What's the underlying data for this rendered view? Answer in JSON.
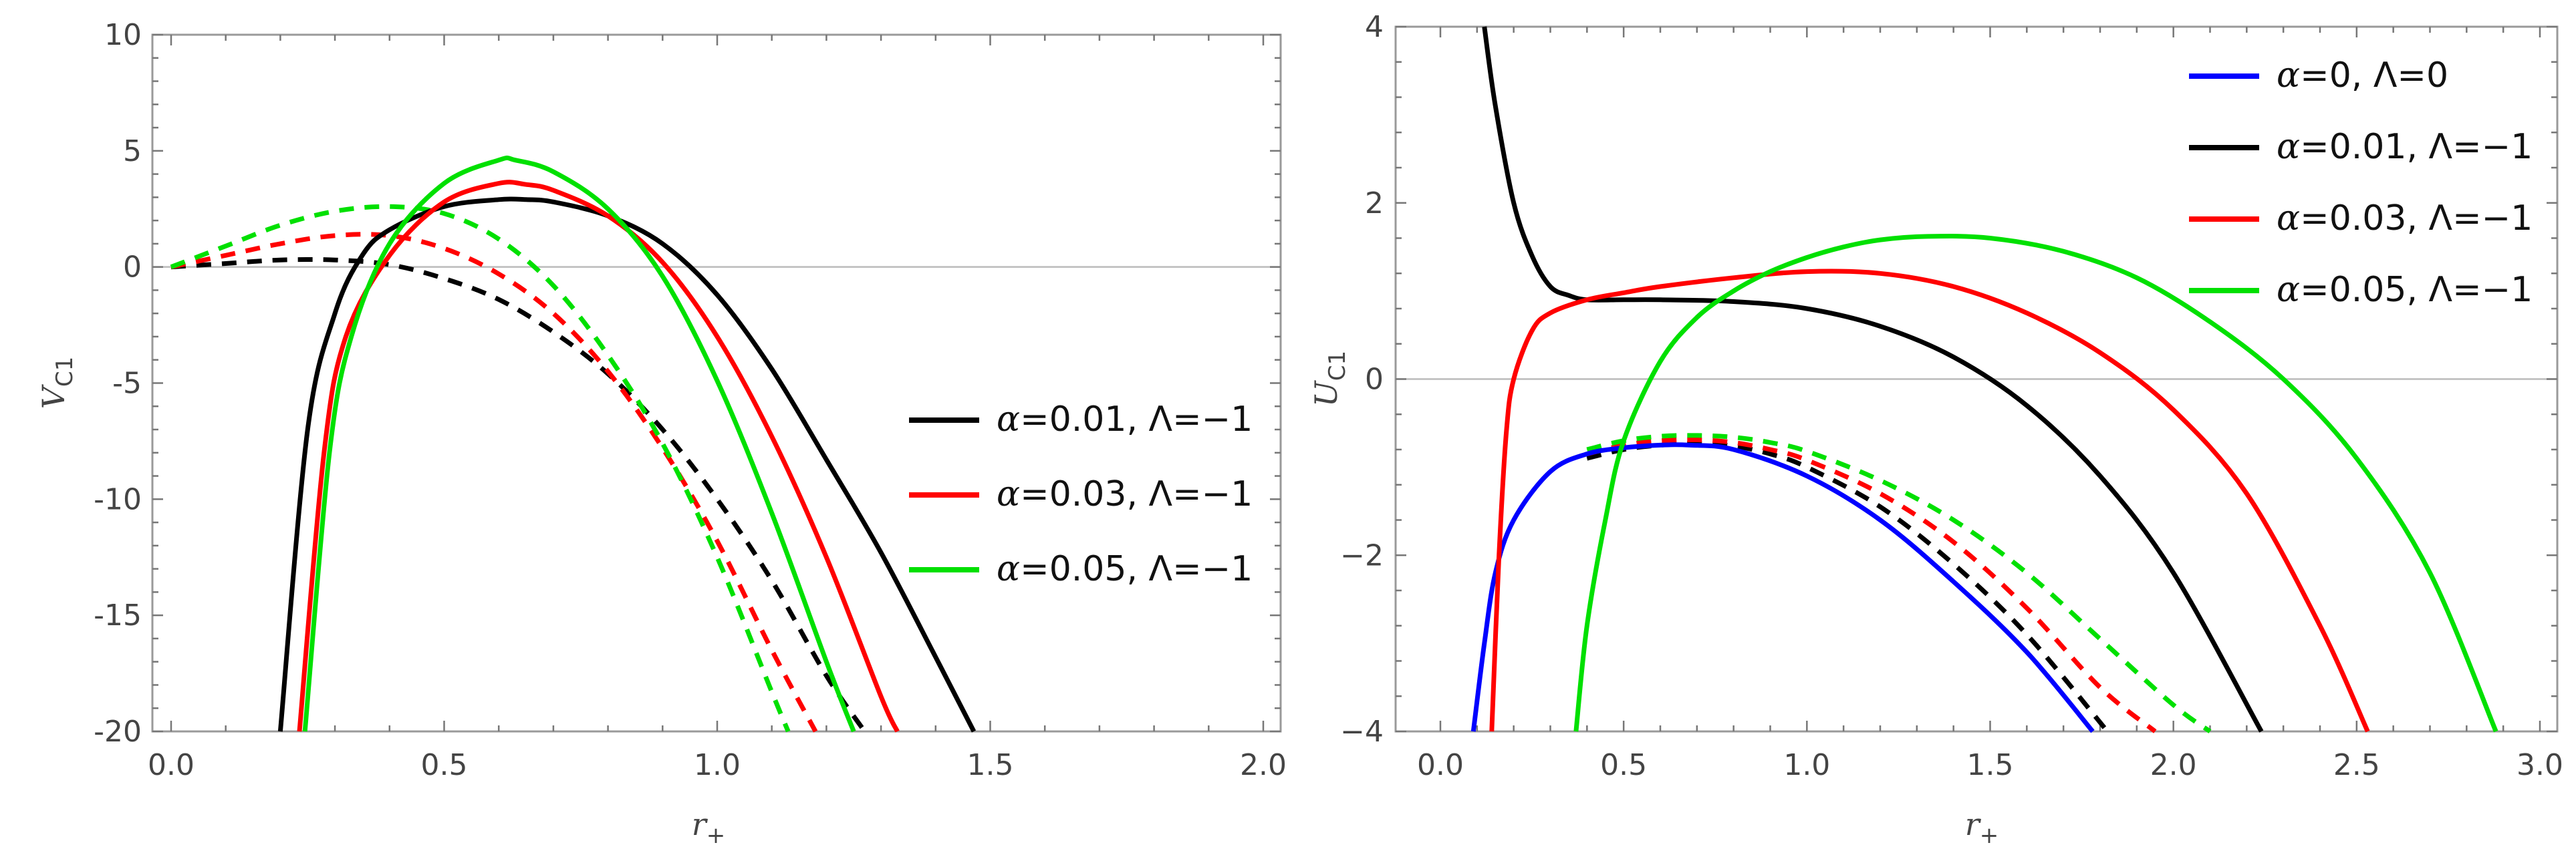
{
  "chart_data": [
    {
      "type": "line",
      "panel": "left",
      "xlabel": "r",
      "xlabel_sub": "+",
      "ylabel": "V",
      "ylabel_sub": "C1",
      "xlim": [
        0,
        2.0
      ],
      "ylim": [
        -20,
        10
      ],
      "xticks": [
        0.0,
        0.5,
        1.0,
        1.5,
        2.0
      ],
      "xtick_labels": [
        "0.0",
        "0.5",
        "1.0",
        "1.5",
        "2.0"
      ],
      "yticks": [
        10,
        5,
        0,
        -5,
        -10,
        -15,
        -20
      ],
      "ytick_labels": [
        "10",
        "5",
        "0",
        "-5",
        "-10",
        "-15",
        "-20"
      ],
      "legend_position": "right-middle",
      "series": [
        {
          "name": "α=0.01, Λ=−1",
          "label_parts": [
            "α",
            "=0.01, Λ=−1"
          ],
          "color": "#000000",
          "style": "solid",
          "x": [
            0.2,
            0.25,
            0.3,
            0.35,
            0.4,
            0.5,
            0.6,
            0.65,
            0.7,
            0.8,
            0.9,
            1.0,
            1.1,
            1.2,
            1.3,
            1.4,
            1.47
          ],
          "y": [
            -20,
            -7,
            -2,
            0.5,
            1.6,
            2.6,
            2.9,
            2.9,
            2.8,
            2.2,
            1.0,
            -1.2,
            -4.4,
            -8.3,
            -12.3,
            -16.8,
            -20
          ]
        },
        {
          "name": "α=0.03, Λ=−1",
          "label_parts": [
            "α",
            "=0.03, Λ=−1"
          ],
          "color": "#ff0000",
          "style": "solid",
          "x": [
            0.235,
            0.28,
            0.32,
            0.4,
            0.5,
            0.6,
            0.65,
            0.7,
            0.8,
            0.9,
            1.0,
            1.1,
            1.2,
            1.3,
            1.33
          ],
          "y": [
            -20,
            -8,
            -3,
            0.5,
            2.8,
            3.6,
            3.55,
            3.3,
            2.2,
            0.2,
            -3.0,
            -7.3,
            -12.5,
            -18.5,
            -20
          ]
        },
        {
          "name": "α=0.05, Λ=−1",
          "label_parts": [
            "α",
            "=0.05, Λ=−1"
          ],
          "color": "#00e000",
          "style": "solid",
          "x": [
            0.245,
            0.29,
            0.33,
            0.4,
            0.5,
            0.6,
            0.63,
            0.7,
            0.8,
            0.9,
            1.0,
            1.1,
            1.2,
            1.25
          ],
          "y": [
            -20,
            -8,
            -3,
            1.0,
            3.6,
            4.6,
            4.6,
            4.1,
            2.5,
            -0.4,
            -4.9,
            -10.6,
            -17.0,
            -20
          ]
        },
        {
          "name": "α=0.01 dashed",
          "color": "#000000",
          "style": "dashed",
          "in_legend": false,
          "x": [
            0.0,
            0.1,
            0.2,
            0.3,
            0.4,
            0.5,
            0.6,
            0.7,
            0.8,
            0.9,
            1.0,
            1.1,
            1.2,
            1.27
          ],
          "y": [
            0,
            0.15,
            0.3,
            0.3,
            0.1,
            -0.5,
            -1.4,
            -2.8,
            -4.6,
            -7.0,
            -10.0,
            -13.5,
            -17.6,
            -20
          ]
        },
        {
          "name": "α=0.03 dashed",
          "color": "#ff0000",
          "style": "dashed",
          "in_legend": false,
          "x": [
            0.0,
            0.1,
            0.2,
            0.3,
            0.4,
            0.5,
            0.6,
            0.7,
            0.8,
            0.9,
            1.0,
            1.1,
            1.18
          ],
          "y": [
            0,
            0.5,
            1.0,
            1.35,
            1.35,
            0.8,
            -0.3,
            -2.0,
            -4.5,
            -7.8,
            -11.8,
            -16.5,
            -20
          ]
        },
        {
          "name": "α=0.05 dashed",
          "color": "#00e000",
          "style": "dashed",
          "in_legend": false,
          "x": [
            0.0,
            0.1,
            0.2,
            0.3,
            0.4,
            0.5,
            0.6,
            0.7,
            0.8,
            0.9,
            1.0,
            1.1,
            1.13
          ],
          "y": [
            0,
            0.9,
            1.8,
            2.4,
            2.6,
            2.3,
            1.2,
            -0.8,
            -3.8,
            -7.6,
            -12.5,
            -18.3,
            -20
          ]
        }
      ]
    },
    {
      "type": "line",
      "panel": "right",
      "xlabel": "r",
      "xlabel_sub": "+",
      "ylabel": "U",
      "ylabel_sub": "C1",
      "xlim": [
        0,
        3.0
      ],
      "ylim": [
        -4,
        4
      ],
      "xticks": [
        0.0,
        0.5,
        1.0,
        1.5,
        2.0,
        2.5,
        3.0
      ],
      "xtick_labels": [
        "0.0",
        "0.5",
        "1.0",
        "1.5",
        "2.0",
        "2.5",
        "3.0"
      ],
      "yticks": [
        4,
        2,
        0,
        -2,
        -4
      ],
      "ytick_labels": [
        "4",
        "2",
        "0",
        "−2",
        "−4"
      ],
      "legend_position": "top-right",
      "series": [
        {
          "name": "α=0, Λ=0",
          "label_parts": [
            "α",
            "=0, Λ=0"
          ],
          "color": "#0000ff",
          "style": "solid",
          "x": [
            0.09,
            0.12,
            0.15,
            0.2,
            0.3,
            0.4,
            0.5,
            0.6,
            0.68,
            0.8,
            1.0,
            1.2,
            1.4,
            1.6,
            1.78
          ],
          "y": [
            -4,
            -3.0,
            -2.2,
            -1.6,
            -1.05,
            -0.85,
            -0.78,
            -0.75,
            -0.75,
            -0.8,
            -1.1,
            -1.6,
            -2.3,
            -3.1,
            -4
          ]
        },
        {
          "name": "α=0.01, Λ=−1",
          "label_parts": [
            "α",
            "=0.01, Λ=−1"
          ],
          "color": "#000000",
          "style": "solid",
          "x": [
            0.12,
            0.15,
            0.2,
            0.25,
            0.3,
            0.35,
            0.4,
            0.5,
            0.6,
            0.8,
            1.0,
            1.2,
            1.4,
            1.6,
            1.8,
            2.0,
            2.24
          ],
          "y": [
            4,
            3.1,
            2.0,
            1.4,
            1.05,
            0.95,
            0.9,
            0.9,
            0.9,
            0.88,
            0.8,
            0.6,
            0.25,
            -0.3,
            -1.1,
            -2.2,
            -4
          ]
        },
        {
          "name": "α=0.03, Λ=−1",
          "label_parts": [
            "α",
            "=0.03, Λ=−1"
          ],
          "color": "#ff0000",
          "style": "solid",
          "x": [
            0.14,
            0.16,
            0.18,
            0.2,
            0.25,
            0.3,
            0.4,
            0.5,
            0.6,
            0.8,
            1.0,
            1.2,
            1.4,
            1.6,
            1.8,
            2.0,
            2.2,
            2.4,
            2.53
          ],
          "y": [
            -4,
            -2.0,
            -0.6,
            0.0,
            0.55,
            0.75,
            0.9,
            0.98,
            1.05,
            1.15,
            1.22,
            1.2,
            1.05,
            0.75,
            0.3,
            -0.35,
            -1.3,
            -2.8,
            -4
          ]
        },
        {
          "name": "α=0.05, Λ=−1",
          "label_parts": [
            "α",
            "=0.05, Λ=−1"
          ],
          "color": "#00e000",
          "style": "solid",
          "x": [
            0.37,
            0.4,
            0.45,
            0.5,
            0.6,
            0.7,
            0.8,
            0.9,
            1.0,
            1.1,
            1.2,
            1.33,
            1.5,
            1.7,
            1.9,
            2.1,
            2.3,
            2.5,
            2.7,
            2.88
          ],
          "y": [
            -4,
            -2.8,
            -1.6,
            -0.7,
            0.2,
            0.7,
            1.0,
            1.22,
            1.38,
            1.5,
            1.58,
            1.62,
            1.6,
            1.45,
            1.15,
            0.65,
            0.0,
            -0.9,
            -2.2,
            -4
          ]
        },
        {
          "name": "α=0.01 dashed",
          "color": "#000000",
          "style": "dashed",
          "in_legend": false,
          "x": [
            0.4,
            0.5,
            0.6,
            0.7,
            0.8,
            0.9,
            1.0,
            1.2,
            1.4,
            1.6,
            1.82
          ],
          "y": [
            -0.9,
            -0.8,
            -0.75,
            -0.73,
            -0.76,
            -0.85,
            -1.0,
            -1.45,
            -2.1,
            -2.9,
            -4
          ]
        },
        {
          "name": "α=0.03 dashed",
          "color": "#ff0000",
          "style": "dashed",
          "in_legend": false,
          "x": [
            0.4,
            0.5,
            0.6,
            0.7,
            0.8,
            0.9,
            1.0,
            1.2,
            1.4,
            1.6,
            1.8,
            1.95
          ],
          "y": [
            -0.85,
            -0.75,
            -0.7,
            -0.69,
            -0.72,
            -0.8,
            -0.92,
            -1.3,
            -1.85,
            -2.6,
            -3.5,
            -4
          ]
        },
        {
          "name": "α=0.05 dashed",
          "color": "#00e000",
          "style": "dashed",
          "in_legend": false,
          "x": [
            0.4,
            0.5,
            0.6,
            0.7,
            0.8,
            0.9,
            1.0,
            1.2,
            1.4,
            1.6,
            1.8,
            2.0,
            2.1
          ],
          "y": [
            -0.8,
            -0.7,
            -0.65,
            -0.64,
            -0.66,
            -0.72,
            -0.82,
            -1.15,
            -1.6,
            -2.2,
            -2.95,
            -3.7,
            -4
          ]
        }
      ]
    }
  ]
}
